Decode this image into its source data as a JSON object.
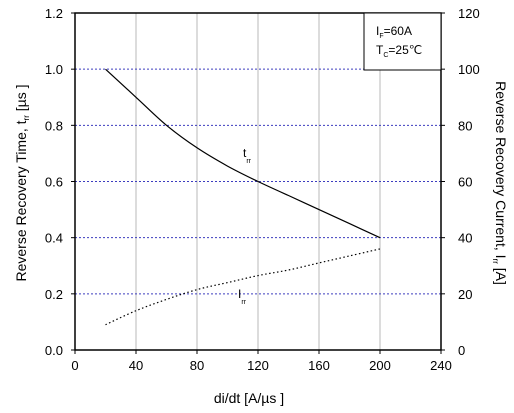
{
  "chart_data": {
    "type": "line",
    "x_axis": {
      "label": "di/dt [A/µs ]",
      "min": 0,
      "max": 240,
      "ticks": [
        0,
        40,
        80,
        120,
        160,
        200,
        240
      ]
    },
    "y_left": {
      "label_main": "Reverse Recovery Time, t",
      "label_sub": "rr",
      "label_unit": " [µs ]",
      "min": 0,
      "max": 1.2,
      "ticks": [
        "0.0",
        "0.2",
        "0.4",
        "0.6",
        "0.8",
        "1.0",
        "1.2"
      ]
    },
    "y_right": {
      "label_main": "Reverse Recovery Current,  I",
      "label_sub": "rr",
      "label_unit": " [A]",
      "min": 0,
      "max": 120,
      "ticks": [
        "0",
        "20",
        "40",
        "60",
        "80",
        "100",
        "120"
      ]
    },
    "grid": true,
    "conditions": {
      "if_main": "I",
      "if_sub": "F",
      "if_value": "=60A",
      "tc_main": "T",
      "tc_sub": "C",
      "tc_value": "=25℃"
    },
    "series": [
      {
        "name": "t_rr",
        "label_main": "t",
        "label_sub": "rr",
        "axis": "left",
        "style": "solid",
        "x": [
          20,
          40,
          60,
          80,
          100,
          120,
          140,
          160,
          180,
          200
        ],
        "y": [
          1.0,
          0.9,
          0.8,
          0.72,
          0.655,
          0.6,
          0.55,
          0.5,
          0.45,
          0.4
        ]
      },
      {
        "name": "I_rr",
        "label_main": "I",
        "label_sub": "rr",
        "axis": "right",
        "style": "dotted",
        "x": [
          20,
          40,
          60,
          80,
          100,
          120,
          140,
          160,
          180,
          200
        ],
        "y": [
          9,
          14,
          18,
          21.5,
          24,
          26.5,
          28.5,
          31,
          33.5,
          36
        ]
      }
    ]
  }
}
